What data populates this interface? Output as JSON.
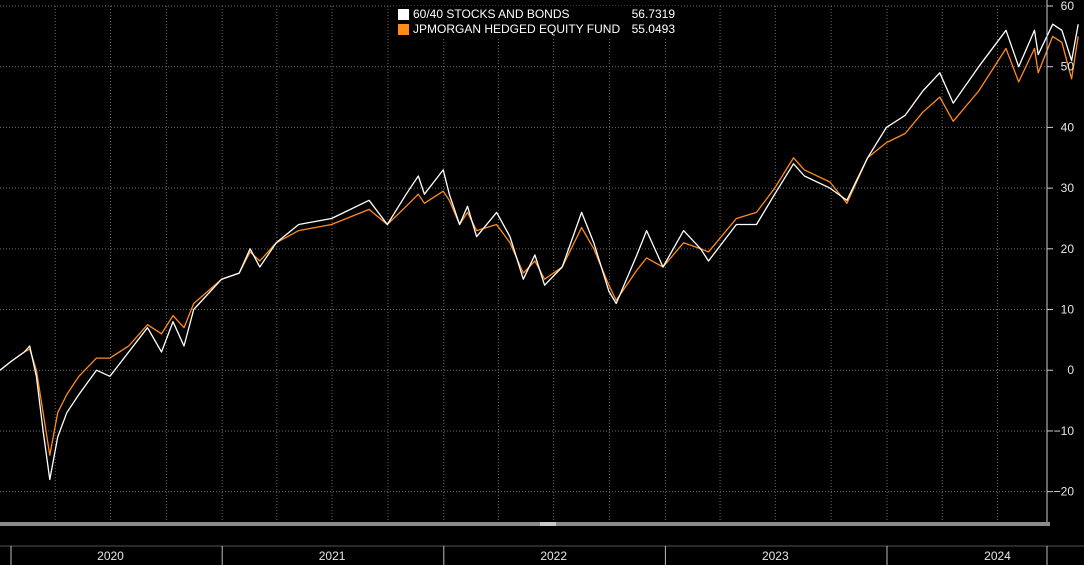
{
  "chart_data": {
    "type": "line",
    "title": "",
    "xlabel": "",
    "ylabel": "",
    "x_range": [
      "2020-01-01",
      "2024-12-31"
    ],
    "ylim": [
      -25,
      60
    ],
    "y_ticks": [
      -20,
      -10,
      0,
      10,
      20,
      30,
      40,
      50,
      60
    ],
    "x_tick_labels": [
      "2020",
      "2021",
      "2022",
      "2023",
      "2024"
    ],
    "grid": true,
    "legend_position": "top-center",
    "background": "#000000",
    "series": [
      {
        "name": "60/40 STOCKS AND BONDS",
        "last_value": "56.7319",
        "color": "#ffffff",
        "points": [
          [
            "2020-01-01",
            0
          ],
          [
            "2020-01-20",
            1.5
          ],
          [
            "2020-02-10",
            3
          ],
          [
            "2020-02-19",
            4
          ],
          [
            "2020-03-01",
            -1
          ],
          [
            "2020-03-12",
            -10
          ],
          [
            "2020-03-23",
            -18
          ],
          [
            "2020-04-05",
            -11
          ],
          [
            "2020-04-20",
            -7
          ],
          [
            "2020-05-10",
            -4
          ],
          [
            "2020-06-08",
            0
          ],
          [
            "2020-06-30",
            -1
          ],
          [
            "2020-07-31",
            3
          ],
          [
            "2020-08-31",
            7
          ],
          [
            "2020-09-23",
            3
          ],
          [
            "2020-10-12",
            8
          ],
          [
            "2020-10-30",
            4
          ],
          [
            "2020-11-15",
            10
          ],
          [
            "2020-12-31",
            15
          ],
          [
            "2021-01-29",
            16
          ],
          [
            "2021-02-16",
            20
          ],
          [
            "2021-03-04",
            17
          ],
          [
            "2021-03-31",
            21
          ],
          [
            "2021-05-07",
            24
          ],
          [
            "2021-06-30",
            25
          ],
          [
            "2021-08-31",
            28
          ],
          [
            "2021-09-30",
            24
          ],
          [
            "2021-10-31",
            29
          ],
          [
            "2021-11-20",
            32
          ],
          [
            "2021-11-30",
            29
          ],
          [
            "2021-12-31",
            33
          ],
          [
            "2022-01-10",
            29
          ],
          [
            "2022-01-27",
            24
          ],
          [
            "2022-02-09",
            27
          ],
          [
            "2022-02-24",
            22
          ],
          [
            "2022-03-29",
            26
          ],
          [
            "2022-04-20",
            22
          ],
          [
            "2022-05-12",
            15
          ],
          [
            "2022-05-31",
            19
          ],
          [
            "2022-06-16",
            14
          ],
          [
            "2022-07-15",
            17
          ],
          [
            "2022-08-16",
            26
          ],
          [
            "2022-09-05",
            21
          ],
          [
            "2022-09-30",
            13
          ],
          [
            "2022-10-12",
            11
          ],
          [
            "2022-11-15",
            19
          ],
          [
            "2022-12-01",
            23
          ],
          [
            "2022-12-28",
            17
          ],
          [
            "2023-01-31",
            23
          ],
          [
            "2023-02-28",
            20
          ],
          [
            "2023-03-13",
            18
          ],
          [
            "2023-04-28",
            24
          ],
          [
            "2023-05-31",
            24
          ],
          [
            "2023-06-30",
            29
          ],
          [
            "2023-07-31",
            34
          ],
          [
            "2023-08-18",
            32
          ],
          [
            "2023-09-29",
            30
          ],
          [
            "2023-10-27",
            28
          ],
          [
            "2023-11-30",
            35
          ],
          [
            "2023-12-31",
            40
          ],
          [
            "2024-01-31",
            42
          ],
          [
            "2024-02-29",
            46
          ],
          [
            "2024-03-28",
            49
          ],
          [
            "2024-04-19",
            44
          ],
          [
            "2024-05-31",
            50
          ],
          [
            "2024-07-15",
            56
          ],
          [
            "2024-08-05",
            50
          ],
          [
            "2024-08-31",
            56
          ],
          [
            "2024-09-06",
            52
          ],
          [
            "2024-09-30",
            57
          ],
          [
            "2024-10-15",
            56
          ],
          [
            "2024-10-31",
            51
          ],
          [
            "2024-11-11",
            57
          ]
        ]
      },
      {
        "name": "JPMORGAN HEDGED EQUITY FUND",
        "last_value": "55.0493",
        "color": "#ff8c1a",
        "points": [
          [
            "2020-01-01",
            0
          ],
          [
            "2020-01-20",
            1.5
          ],
          [
            "2020-02-10",
            3
          ],
          [
            "2020-02-19",
            3.5
          ],
          [
            "2020-03-01",
            0
          ],
          [
            "2020-03-12",
            -7
          ],
          [
            "2020-03-23",
            -14
          ],
          [
            "2020-04-05",
            -7
          ],
          [
            "2020-04-20",
            -4
          ],
          [
            "2020-05-10",
            -1
          ],
          [
            "2020-06-08",
            2
          ],
          [
            "2020-06-30",
            2
          ],
          [
            "2020-07-31",
            4
          ],
          [
            "2020-08-31",
            7.5
          ],
          [
            "2020-09-23",
            6
          ],
          [
            "2020-10-12",
            9
          ],
          [
            "2020-10-30",
            7
          ],
          [
            "2020-11-15",
            11
          ],
          [
            "2020-12-31",
            15
          ],
          [
            "2021-01-29",
            16
          ],
          [
            "2021-02-16",
            19.5
          ],
          [
            "2021-03-04",
            18
          ],
          [
            "2021-03-31",
            21
          ],
          [
            "2021-05-07",
            23
          ],
          [
            "2021-06-30",
            24
          ],
          [
            "2021-08-31",
            26.5
          ],
          [
            "2021-09-30",
            24
          ],
          [
            "2021-10-31",
            27
          ],
          [
            "2021-11-20",
            29
          ],
          [
            "2021-11-30",
            27.5
          ],
          [
            "2021-12-31",
            29.5
          ],
          [
            "2022-01-10",
            28
          ],
          [
            "2022-01-27",
            24
          ],
          [
            "2022-02-09",
            26
          ],
          [
            "2022-02-24",
            23
          ],
          [
            "2022-03-29",
            24
          ],
          [
            "2022-04-20",
            21
          ],
          [
            "2022-05-12",
            16
          ],
          [
            "2022-05-31",
            18
          ],
          [
            "2022-06-16",
            15
          ],
          [
            "2022-07-15",
            17
          ],
          [
            "2022-08-16",
            23.5
          ],
          [
            "2022-09-05",
            20
          ],
          [
            "2022-09-30",
            14
          ],
          [
            "2022-10-12",
            11.5
          ],
          [
            "2022-11-15",
            16.5
          ],
          [
            "2022-12-01",
            18.5
          ],
          [
            "2022-12-28",
            17
          ],
          [
            "2023-01-31",
            21
          ],
          [
            "2023-02-28",
            20
          ],
          [
            "2023-03-13",
            19.5
          ],
          [
            "2023-04-28",
            25
          ],
          [
            "2023-05-31",
            26
          ],
          [
            "2023-06-30",
            30
          ],
          [
            "2023-07-31",
            35
          ],
          [
            "2023-08-18",
            33
          ],
          [
            "2023-09-29",
            31
          ],
          [
            "2023-10-27",
            27.5
          ],
          [
            "2023-11-30",
            35
          ],
          [
            "2023-12-31",
            37.5
          ],
          [
            "2024-01-31",
            39
          ],
          [
            "2024-02-29",
            42.5
          ],
          [
            "2024-03-28",
            45
          ],
          [
            "2024-04-19",
            41
          ],
          [
            "2024-05-31",
            46
          ],
          [
            "2024-07-15",
            53
          ],
          [
            "2024-08-05",
            47.5
          ],
          [
            "2024-08-31",
            53
          ],
          [
            "2024-09-06",
            49
          ],
          [
            "2024-09-30",
            55
          ],
          [
            "2024-10-15",
            54
          ],
          [
            "2024-10-31",
            48
          ],
          [
            "2024-11-11",
            55
          ]
        ]
      }
    ]
  }
}
